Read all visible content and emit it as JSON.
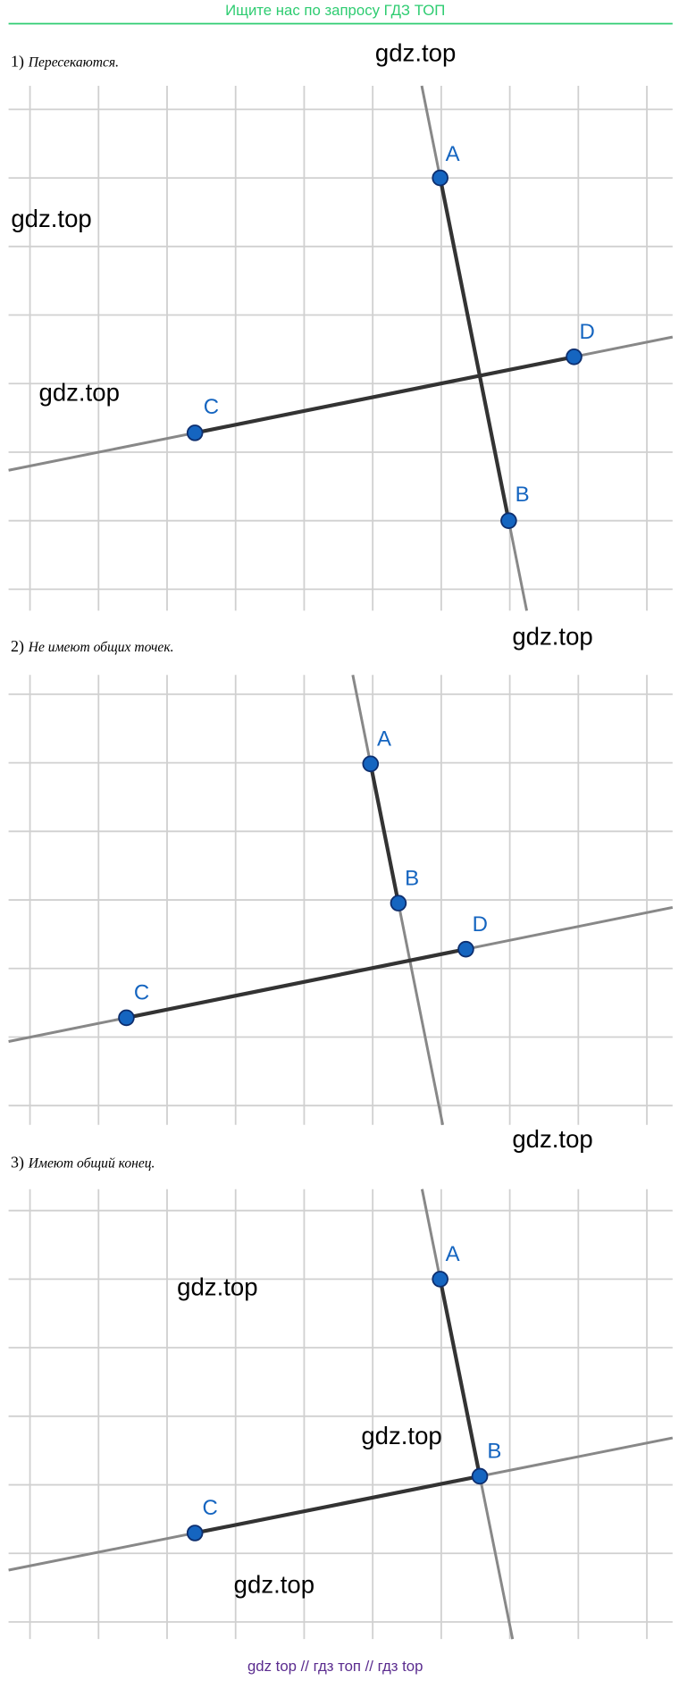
{
  "header": {
    "title": "Ищите нас по запросу ГДЗ ТОП"
  },
  "items": [
    {
      "number": "1)",
      "text": "Пересекаются.",
      "points": [
        "A",
        "B",
        "C",
        "D"
      ]
    },
    {
      "number": "2)",
      "text": "Не имеют общих точек.",
      "points": [
        "A",
        "B",
        "C",
        "D"
      ]
    },
    {
      "number": "3)",
      "text": "Имеют общий конец.",
      "points": [
        "A",
        "B",
        "C"
      ]
    }
  ],
  "watermarks": [
    "gdz.top",
    "gdz.top",
    "gdz.top",
    "gdz.top",
    "gdz.top",
    "gdz.top",
    "gdz.top",
    "gdz.top"
  ],
  "footer": {
    "text": "gdz top  //  гдз топ  //  гдз top"
  }
}
